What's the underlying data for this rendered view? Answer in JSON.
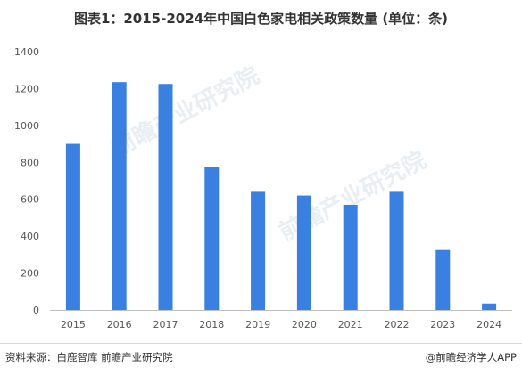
{
  "title": "图表1：2015-2024年中国白色家电相关政策数量 (单位：条)",
  "footer": {
    "source": "资料来源：白鹿智库 前瞻产业研究院",
    "brand": "@前瞻经济学人APP"
  },
  "watermark": "前瞻产业研究院",
  "colors": {
    "bar": "#3a80e0",
    "axis": "#bfbfbf",
    "tick_text": "#555555"
  },
  "chart_data": {
    "type": "bar",
    "title": "图表1：2015-2024年中国白色家电相关政策数量 (单位：条)",
    "categories": [
      "2015",
      "2016",
      "2017",
      "2018",
      "2019",
      "2020",
      "2021",
      "2022",
      "2023",
      "2024"
    ],
    "values": [
      900,
      1235,
      1225,
      775,
      645,
      620,
      570,
      645,
      325,
      35
    ],
    "yticks": [
      "0",
      "200",
      "400",
      "600",
      "800",
      "1000",
      "1200",
      "1400"
    ],
    "ylim": [
      0,
      1400
    ],
    "xlabel": "",
    "ylabel": "",
    "grid": false,
    "legend": "none"
  }
}
